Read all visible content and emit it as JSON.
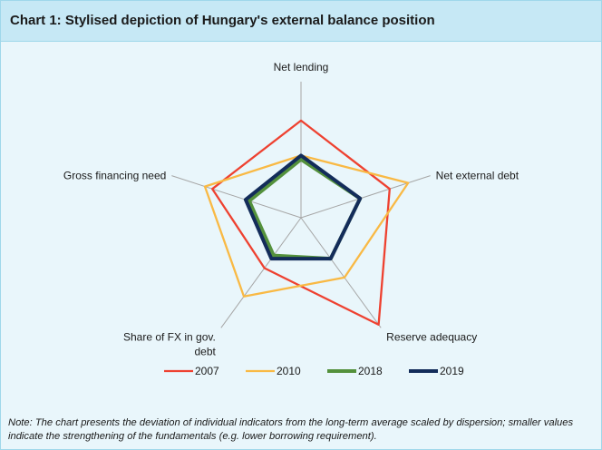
{
  "title": "Chart 1: Stylised depiction of Hungary's external balance position",
  "chart_data": {
    "type": "radar",
    "axes": [
      "Net lending",
      "Net external debt",
      "Reserve adequacy",
      "Share of FX in gov. debt",
      "Gross financing need"
    ],
    "axis_labels": [
      [
        "Net lending"
      ],
      [
        "Net external debt"
      ],
      [
        "Reserve adequacy"
      ],
      [
        "Share of FX in gov.",
        "debt"
      ],
      [
        "Gross financing need"
      ]
    ],
    "rlim": [
      -1,
      2.5
    ],
    "grid": "spokes only",
    "legend_position": "bottom",
    "series": [
      {
        "name": "2007",
        "color": "#ee4130",
        "values": [
          1.5,
          1.4,
          2.4,
          0.6,
          1.4
        ]
      },
      {
        "name": "2010",
        "color": "#f9b944",
        "values": [
          0.6,
          1.9,
          0.9,
          1.5,
          1.6
        ]
      },
      {
        "name": "2018",
        "color": "#54913c",
        "values": [
          0.5,
          0.6,
          0.3,
          0.2,
          0.4
        ]
      },
      {
        "name": "2019",
        "color": "#132c5a",
        "values": [
          0.6,
          0.6,
          0.3,
          0.3,
          0.5
        ]
      }
    ]
  },
  "note": "Note: The chart presents the deviation of individual indicators from the long-term average scaled by dispersion; smaller values indicate the strengthening of the fundamentals (e.g. lower borrowing requirement)."
}
